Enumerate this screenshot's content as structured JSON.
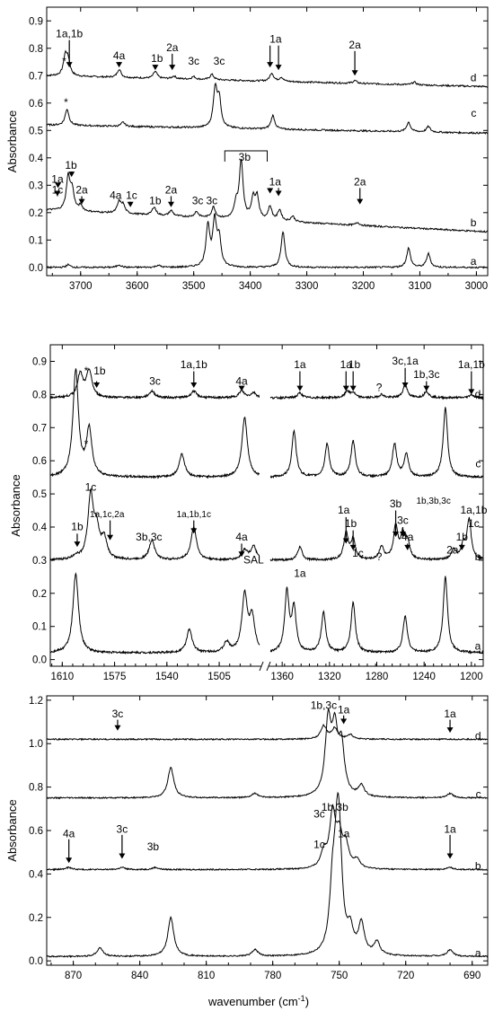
{
  "chart_data": [
    {
      "type": "line",
      "panel": "top",
      "ylabel": "Absorbance",
      "xlim": [
        3760,
        2980
      ],
      "ylim": [
        -0.03,
        0.95
      ],
      "xticks": [
        "3700",
        "3600",
        "3500",
        "3400",
        "3300",
        "3200",
        "3100",
        "3000"
      ],
      "yticks": [
        "0.0",
        "0.1",
        "0.2",
        "0.3",
        "0.4",
        "0.5",
        "0.6",
        "0.7",
        "0.8",
        "0.9"
      ],
      "series": [
        {
          "name": "d",
          "offset": 0.7,
          "baseline_end": 0.66,
          "peaks": [
            [
              3727,
              0.07
            ],
            [
              3722,
              0.05
            ],
            [
              3632,
              0.03
            ],
            [
              3568,
              0.025
            ],
            [
              3535,
              0.01
            ],
            [
              3500,
              0.01
            ],
            [
              3468,
              0.02
            ],
            [
              3362,
              0.03
            ],
            [
              3345,
              0.015
            ],
            [
              3215,
              0.01
            ],
            [
              3110,
              0.01
            ]
          ]
        },
        {
          "name": "c",
          "offset": 0.52,
          "baseline_end": 0.49,
          "peaks": [
            [
              3724,
              0.06
            ],
            [
              3625,
              0.015
            ],
            [
              3462,
              0.14
            ],
            [
              3455,
              0.1
            ],
            [
              3360,
              0.05
            ],
            [
              3120,
              0.035
            ],
            [
              3085,
              0.02
            ]
          ]
        },
        {
          "name": "b",
          "offset": 0.21,
          "baseline_end": 0.13,
          "peaks": [
            [
              3722,
              0.12
            ],
            [
              3715,
              0.07
            ],
            [
              3700,
              0.02
            ],
            [
              3632,
              0.04
            ],
            [
              3625,
              0.03
            ],
            [
              3570,
              0.03
            ],
            [
              3540,
              0.02
            ],
            [
              3495,
              0.02
            ],
            [
              3465,
              0.04
            ],
            [
              3425,
              0.05
            ],
            [
              3416,
              0.21
            ],
            [
              3395,
              0.07
            ],
            [
              3388,
              0.08
            ],
            [
              3365,
              0.05
            ],
            [
              3348,
              0.04
            ],
            [
              3325,
              0.02
            ],
            [
              3210,
              0.01
            ]
          ]
        },
        {
          "name": "a",
          "offset": 0.0,
          "baseline_end": 0.0,
          "peaks": [
            [
              3722,
              0.01
            ],
            [
              3632,
              0.01
            ],
            [
              3563,
              0.008
            ],
            [
              3475,
              0.15
            ],
            [
              3463,
              0.16
            ],
            [
              3455,
              0.1
            ],
            [
              3342,
              0.13
            ],
            [
              3120,
              0.07
            ],
            [
              3085,
              0.05
            ]
          ]
        }
      ],
      "annotations": [
        {
          "text": "1a,1b",
          "x": 3720,
          "y": 0.84
        },
        {
          "text": "*",
          "x": 3729,
          "y": 0.74
        },
        {
          "text": "4a",
          "x": 3632,
          "y": 0.76
        },
        {
          "text": "1b",
          "x": 3565,
          "y": 0.75
        },
        {
          "text": "2a",
          "x": 3538,
          "y": 0.79
        },
        {
          "text": "3c",
          "x": 3500,
          "y": 0.74
        },
        {
          "text": "3c",
          "x": 3455,
          "y": 0.74
        },
        {
          "text": "1a",
          "x": 3355,
          "y": 0.82
        },
        {
          "text": "2a",
          "x": 3215,
          "y": 0.8
        },
        {
          "text": "*",
          "x": 3726,
          "y": 0.59
        },
        {
          "text": "3b",
          "x": 3410,
          "y": 0.39
        },
        {
          "text": "1b",
          "x": 3717,
          "y": 0.36
        },
        {
          "text": "1a",
          "x": 3741,
          "y": 0.31
        },
        {
          "text": "1c",
          "x": 3741,
          "y": 0.27
        },
        {
          "text": "2a",
          "x": 3698,
          "y": 0.27
        },
        {
          "text": "4a",
          "x": 3638,
          "y": 0.25
        },
        {
          "text": "1c",
          "x": 3610,
          "y": 0.25
        },
        {
          "text": "1b",
          "x": 3568,
          "y": 0.23
        },
        {
          "text": "2a",
          "x": 3540,
          "y": 0.27
        },
        {
          "text": "3c",
          "x": 3493,
          "y": 0.23
        },
        {
          "text": "3c",
          "x": 3468,
          "y": 0.23
        },
        {
          "text": "1a",
          "x": 3356,
          "y": 0.3
        },
        {
          "text": "2a",
          "x": 3206,
          "y": 0.3
        },
        {
          "text": "d",
          "x": 3000,
          "y": 0.68
        },
        {
          "text": "c",
          "x": 3000,
          "y": 0.55
        },
        {
          "text": "b",
          "x": 3000,
          "y": 0.15
        },
        {
          "text": "a",
          "x": 3000,
          "y": 0.01
        }
      ]
    },
    {
      "type": "line",
      "panel": "middle",
      "ylabel": "Absorbance",
      "segments": [
        {
          "xlim": [
            1618,
            1478
          ]
        },
        {
          "xlim": [
            1370,
            1190
          ]
        }
      ],
      "ylim": [
        -0.02,
        0.95
      ],
      "xticks": [
        "1610",
        "1575",
        "1540",
        "1505",
        "1360",
        "1320",
        "1280",
        "1240",
        "1200"
      ],
      "yticks": [
        "0.0",
        "0.1",
        "0.2",
        "0.3",
        "0.4",
        "0.5",
        "0.6",
        "0.7",
        "0.8",
        "0.9"
      ],
      "axis_break": "//",
      "series": [
        {
          "name": "d",
          "offset": 0.79,
          "peaks": [
            [
              1598,
              0.07
            ],
            [
              1592,
              0.08
            ],
            [
              1550,
              0.02
            ],
            [
              1522,
              0.02
            ],
            [
              1490,
              0.02
            ],
            [
              1482,
              0.015
            ],
            [
              1345,
              0.015
            ],
            [
              1305,
              0.02
            ],
            [
              1300,
              0.015
            ],
            [
              1276,
              0.01
            ],
            [
              1256,
              0.04
            ],
            [
              1238,
              0.02
            ],
            [
              1200,
              0.01
            ]
          ]
        },
        {
          "name": "c",
          "offset": 0.55,
          "peaks": [
            [
              1601,
              0.32
            ],
            [
              1592,
              0.14
            ],
            [
              1530,
              0.07
            ],
            [
              1488,
              0.18
            ],
            [
              1350,
              0.14
            ],
            [
              1322,
              0.1
            ],
            [
              1300,
              0.11
            ],
            [
              1265,
              0.1
            ],
            [
              1255,
              0.07
            ],
            [
              1222,
              0.21
            ]
          ]
        },
        {
          "name": "b",
          "offset": 0.3,
          "peaks": [
            [
              1601,
              0.01
            ],
            [
              1591,
              0.19
            ],
            [
              1587,
              0.08
            ],
            [
              1582,
              0.06
            ],
            [
              1550,
              0.06
            ],
            [
              1522,
              0.1
            ],
            [
              1488,
              0.03
            ],
            [
              1482,
              0.04
            ],
            [
              1345,
              0.04
            ],
            [
              1306,
              0.08
            ],
            [
              1300,
              0.06
            ],
            [
              1276,
              0.04
            ],
            [
              1264,
              0.1
            ],
            [
              1258,
              0.07
            ],
            [
              1254,
              0.05
            ],
            [
              1215,
              0.03
            ],
            [
              1207,
              0.04
            ],
            [
              1202,
              0.12
            ]
          ]
        },
        {
          "name": "a",
          "offset": 0.02,
          "peaks": [
            [
              1601,
              0.24
            ],
            [
              1525,
              0.07
            ],
            [
              1500,
              0.03
            ],
            [
              1488,
              0.17
            ],
            [
              1483,
              0.1
            ],
            [
              1356,
              0.18
            ],
            [
              1350,
              0.13
            ],
            [
              1325,
              0.12
            ],
            [
              1300,
              0.15
            ],
            [
              1256,
              0.11
            ],
            [
              1222,
              0.23
            ]
          ]
        }
      ],
      "annotations": [
        {
          "text": "*",
          "x": 1594,
          "y": 0.86
        },
        {
          "text": "1b",
          "x": 1585,
          "y": 0.86
        },
        {
          "text": "3c",
          "x": 1548,
          "y": 0.83
        },
        {
          "text": "1a,1b",
          "x": 1522,
          "y": 0.88
        },
        {
          "text": "4a",
          "x": 1490,
          "y": 0.83
        },
        {
          "text": "1a",
          "x": 1345,
          "y": 0.88
        },
        {
          "text": "1a",
          "x": 1306,
          "y": 0.88
        },
        {
          "text": "1b",
          "x": 1299,
          "y": 0.88
        },
        {
          "text": "?",
          "x": 1278,
          "y": 0.81
        },
        {
          "text": "3c,1a",
          "x": 1256,
          "y": 0.89
        },
        {
          "text": "1b,3c",
          "x": 1238,
          "y": 0.85
        },
        {
          "text": "1a,1b",
          "x": 1200,
          "y": 0.88
        },
        {
          "text": "*",
          "x": 1594,
          "y": 0.64
        },
        {
          "text": "1c",
          "x": 1591,
          "y": 0.51
        },
        {
          "text": "1a,1c,2a",
          "x": 1580,
          "y": 0.43
        },
        {
          "text": "1b",
          "x": 1600,
          "y": 0.39
        },
        {
          "text": "1a,1b,1c",
          "x": 1522,
          "y": 0.43
        },
        {
          "text": "3b,3c",
          "x": 1552,
          "y": 0.36
        },
        {
          "text": "4a",
          "x": 1490,
          "y": 0.36
        },
        {
          "text": "SAL",
          "x": 1482,
          "y": 0.29
        },
        {
          "text": "1a",
          "x": 1345,
          "y": 0.25
        },
        {
          "text": "1a",
          "x": 1308,
          "y": 0.44
        },
        {
          "text": "1b",
          "x": 1302,
          "y": 0.4
        },
        {
          "text": "1c",
          "x": 1296,
          "y": 0.31
        },
        {
          "text": "?",
          "x": 1278,
          "y": 0.3
        },
        {
          "text": "3b",
          "x": 1264,
          "y": 0.46
        },
        {
          "text": "3c",
          "x": 1258,
          "y": 0.41
        },
        {
          "text": "4a",
          "x": 1254,
          "y": 0.36
        },
        {
          "text": "1b,3b,3c",
          "x": 1232,
          "y": 0.47
        },
        {
          "text": "1b",
          "x": 1208,
          "y": 0.36
        },
        {
          "text": "2a",
          "x": 1216,
          "y": 0.32
        },
        {
          "text": "1a,1b",
          "x": 1198,
          "y": 0.44
        },
        {
          "text": "1c",
          "x": 1198,
          "y": 0.4
        },
        {
          "text": "d",
          "x": 1192,
          "y": 0.79
        },
        {
          "text": "c",
          "x": 1192,
          "y": 0.58
        },
        {
          "text": "b",
          "x": 1192,
          "y": 0.3
        },
        {
          "text": "a",
          "x": 1192,
          "y": 0.03
        }
      ]
    },
    {
      "type": "line",
      "panel": "bottom",
      "xlabel": "wavenumber (cm",
      "xlabel_sup": "-1",
      "xlabel_end": ")",
      "ylabel": "Absorbance",
      "xlim": [
        882,
        683
      ],
      "ylim": [
        -0.02,
        1.22
      ],
      "xticks": [
        "870",
        "840",
        "810",
        "780",
        "750",
        "720",
        "690"
      ],
      "yticks": [
        "0.0",
        "0.2",
        "0.4",
        "0.6",
        "0.8",
        "1.0",
        "1.2"
      ],
      "series": [
        {
          "name": "d",
          "offset": 1.02,
          "peaks": [
            [
              757,
              0.06
            ],
            [
              752,
              0.05
            ],
            [
              745,
              0.02
            ]
          ]
        },
        {
          "name": "c",
          "offset": 0.75,
          "peaks": [
            [
              826,
              0.14
            ],
            [
              788,
              0.02
            ],
            [
              755,
              0.33
            ],
            [
              752,
              0.27
            ],
            [
              749,
              0.22
            ],
            [
              740,
              0.05
            ],
            [
              700,
              0.02
            ]
          ]
        },
        {
          "name": "b",
          "offset": 0.42,
          "peaks": [
            [
              872,
              0.01
            ],
            [
              848,
              0.01
            ],
            [
              833,
              0.01
            ],
            [
              757,
              0.07
            ],
            [
              753,
              0.25
            ],
            [
              750,
              0.14
            ],
            [
              747,
              0.1
            ],
            [
              742,
              0.04
            ],
            [
              700,
              0.01
            ]
          ]
        },
        {
          "name": "a",
          "offset": 0.02,
          "peaks": [
            [
              858,
              0.04
            ],
            [
              826,
              0.18
            ],
            [
              788,
              0.03
            ],
            [
              753,
              0.26
            ],
            [
              751,
              0.33
            ],
            [
              750,
              0.4
            ],
            [
              745,
              0.1
            ],
            [
              740,
              0.14
            ],
            [
              733,
              0.06
            ],
            [
              700,
              0.03
            ]
          ]
        }
      ],
      "annotations": [
        {
          "text": "3c",
          "x": 850,
          "y": 1.12
        },
        {
          "text": "1b,3c",
          "x": 757,
          "y": 1.16
        },
        {
          "text": "1a",
          "x": 748,
          "y": 1.14
        },
        {
          "text": "1a",
          "x": 700,
          "y": 1.12
        },
        {
          "text": "4a",
          "x": 872,
          "y": 0.57
        },
        {
          "text": "3c",
          "x": 848,
          "y": 0.59
        },
        {
          "text": "3b",
          "x": 834,
          "y": 0.51
        },
        {
          "text": "3c",
          "x": 759,
          "y": 0.66
        },
        {
          "text": "1b,3b",
          "x": 752,
          "y": 0.69
        },
        {
          "text": "1a",
          "x": 748,
          "y": 0.57
        },
        {
          "text": "1c",
          "x": 759,
          "y": 0.52
        },
        {
          "text": "1a",
          "x": 700,
          "y": 0.59
        },
        {
          "text": "d",
          "x": 686,
          "y": 1.02
        },
        {
          "text": "c",
          "x": 686,
          "y": 0.75
        },
        {
          "text": "b",
          "x": 686,
          "y": 0.42
        },
        {
          "text": "a",
          "x": 686,
          "y": 0.02
        }
      ]
    }
  ]
}
